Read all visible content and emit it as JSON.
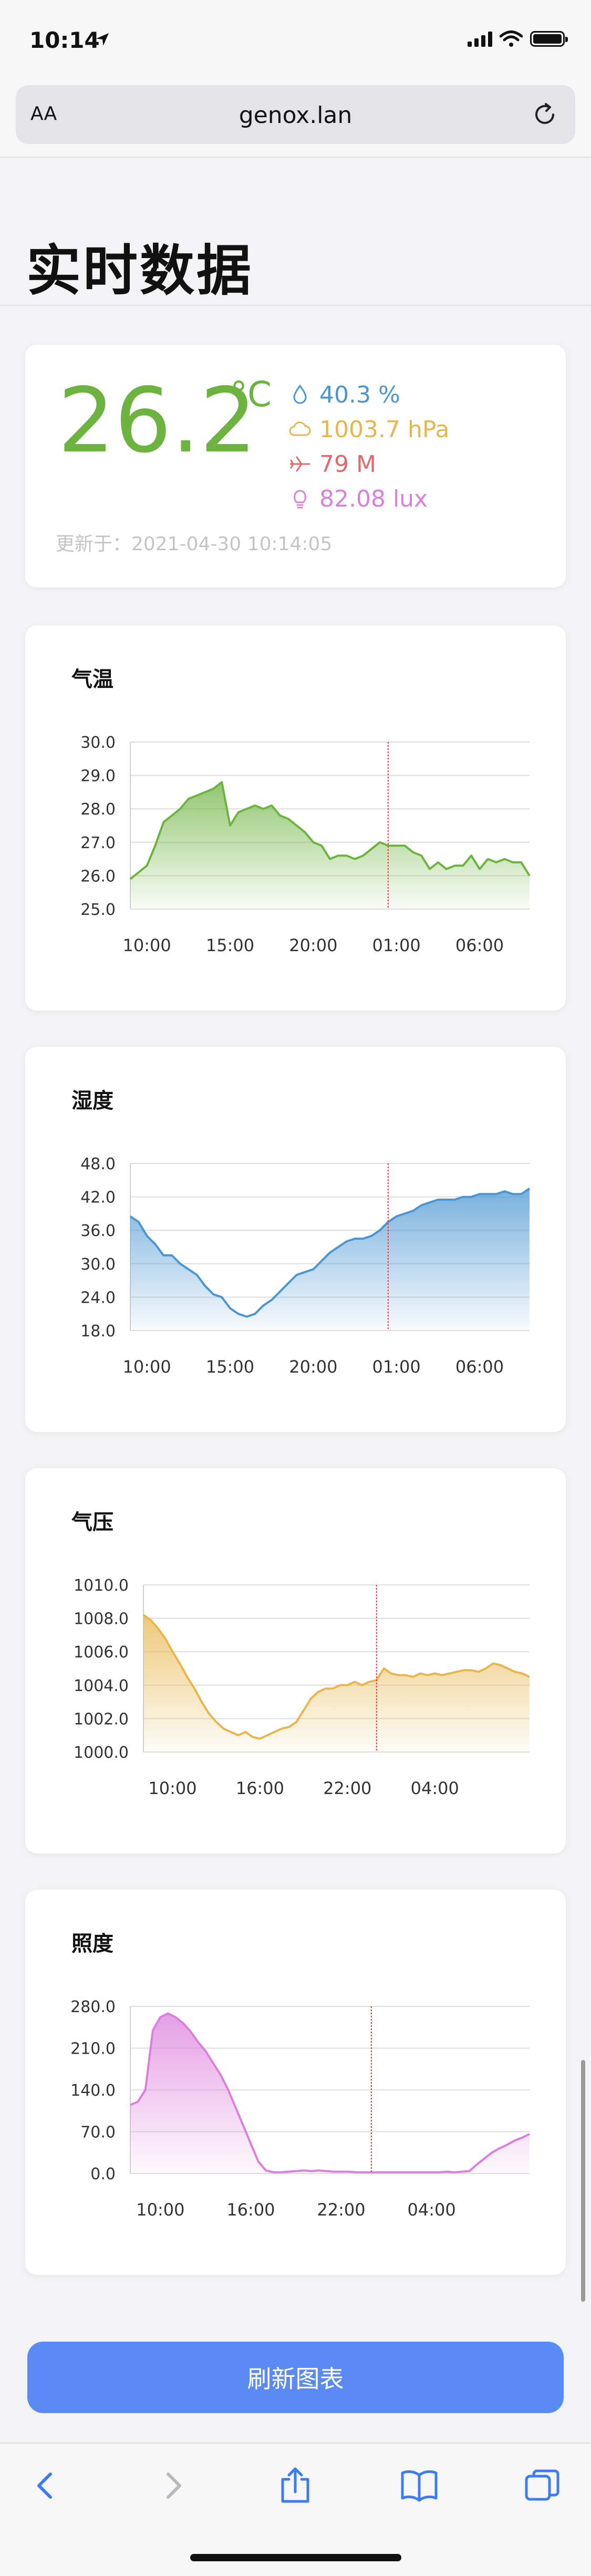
{
  "status_bar": {
    "time": "10:14"
  },
  "browser": {
    "text_size_label": "AA",
    "url": "genox.lan"
  },
  "page": {
    "title": "实时数据"
  },
  "current": {
    "temperature": "26.2",
    "temperature_unit": "°C",
    "humidity": "40.3 %",
    "pressure": "1003.7 hPa",
    "altitude": "79 M",
    "illuminance": "82.08 lux",
    "updated": "更新于：2021-04-30 10:14:05",
    "colors": {
      "temperature": "#6db33f",
      "humidity": "#4a96d2",
      "pressure": "#e8b64c",
      "altitude": "#e06a6a",
      "illuminance": "#dc7fdc"
    }
  },
  "refresh_button": {
    "label": "刷新图表"
  },
  "chart_data": [
    {
      "type": "area",
      "title": "气温",
      "color": "#6db33f",
      "yticks": [
        "30.0",
        "29.0",
        "28.0",
        "27.0",
        "26.0",
        "25.0"
      ],
      "ylim": [
        25,
        30
      ],
      "xticks": [
        "10:00",
        "15:00",
        "20:00",
        "01:00",
        "06:00"
      ],
      "x": [
        "09:00",
        "09:30",
        "10:00",
        "10:30",
        "11:00",
        "11:30",
        "12:00",
        "12:30",
        "13:00",
        "13:30",
        "14:00",
        "14:30",
        "15:00",
        "15:30",
        "16:00",
        "16:30",
        "17:00",
        "17:30",
        "18:00",
        "18:30",
        "19:00",
        "19:30",
        "20:00",
        "20:30",
        "21:00",
        "21:30",
        "22:00",
        "22:30",
        "23:00",
        "23:30",
        "00:00",
        "00:30",
        "01:00",
        "01:30",
        "02:00",
        "02:30",
        "03:00",
        "03:30",
        "04:00",
        "04:30",
        "05:00",
        "05:30",
        "06:00",
        "06:30",
        "07:00",
        "07:30",
        "08:00",
        "08:30",
        "09:00"
      ],
      "values": [
        25.9,
        26.1,
        26.3,
        26.9,
        27.6,
        27.8,
        28.0,
        28.3,
        28.4,
        28.5,
        28.6,
        28.8,
        27.5,
        27.9,
        28.0,
        28.1,
        28.0,
        28.1,
        27.8,
        27.7,
        27.5,
        27.3,
        27.0,
        26.9,
        26.5,
        26.6,
        26.6,
        26.5,
        26.6,
        26.8,
        27.0,
        26.9,
        26.9,
        26.9,
        26.7,
        26.6,
        26.2,
        26.4,
        26.2,
        26.3,
        26.3,
        26.6,
        26.2,
        26.5,
        26.4,
        26.5,
        26.4,
        26.4,
        26.0
      ],
      "marker_at": "00:30"
    },
    {
      "type": "area",
      "title": "湿度",
      "color": "#4a96d2",
      "yticks": [
        "48.0",
        "42.0",
        "36.0",
        "30.0",
        "24.0",
        "18.0"
      ],
      "ylim": [
        18,
        48
      ],
      "xticks": [
        "10:00",
        "15:00",
        "20:00",
        "01:00",
        "06:00"
      ],
      "x": [
        "09:00",
        "09:30",
        "10:00",
        "10:30",
        "11:00",
        "11:30",
        "12:00",
        "12:30",
        "13:00",
        "13:30",
        "14:00",
        "14:30",
        "15:00",
        "15:30",
        "16:00",
        "16:30",
        "17:00",
        "17:30",
        "18:00",
        "18:30",
        "19:00",
        "19:30",
        "20:00",
        "20:30",
        "21:00",
        "21:30",
        "22:00",
        "22:30",
        "23:00",
        "23:30",
        "00:00",
        "00:30",
        "01:00",
        "01:30",
        "02:00",
        "02:30",
        "03:00",
        "03:30",
        "04:00",
        "04:30",
        "05:00",
        "05:30",
        "06:00",
        "06:30",
        "07:00",
        "07:30",
        "08:00",
        "08:30",
        "09:00"
      ],
      "values": [
        38.5,
        37.5,
        35.0,
        33.5,
        31.5,
        31.5,
        30.0,
        29.0,
        28.0,
        26.0,
        24.5,
        24.0,
        22.0,
        21.0,
        20.5,
        21.0,
        22.5,
        23.5,
        25.0,
        26.5,
        28.0,
        28.5,
        29.0,
        30.5,
        32.0,
        33.0,
        34.0,
        34.5,
        34.5,
        35.0,
        36.0,
        37.5,
        38.5,
        39.0,
        39.5,
        40.5,
        41.0,
        41.5,
        41.5,
        41.5,
        42.0,
        42.0,
        42.5,
        42.5,
        42.5,
        43.0,
        42.5,
        42.5,
        43.5
      ],
      "marker_at": "00:30"
    },
    {
      "type": "area",
      "title": "气压",
      "color": "#e8b64c",
      "yticks": [
        "1010.0",
        "1008.0",
        "1006.0",
        "1004.0",
        "1002.0",
        "1000.0"
      ],
      "ylim": [
        1000,
        1010
      ],
      "xticks": [
        "10:00",
        "16:00",
        "22:00",
        "04:00"
      ],
      "x": [
        "08:00",
        "08:30",
        "09:00",
        "09:30",
        "10:00",
        "10:30",
        "11:00",
        "11:30",
        "12:00",
        "12:30",
        "13:00",
        "13:30",
        "14:00",
        "14:30",
        "15:00",
        "15:30",
        "16:00",
        "16:30",
        "17:00",
        "17:30",
        "18:00",
        "18:30",
        "19:00",
        "19:30",
        "20:00",
        "20:30",
        "21:00",
        "21:30",
        "22:00",
        "22:30",
        "23:00",
        "23:30",
        "00:00",
        "00:30",
        "01:00",
        "01:30",
        "02:00",
        "02:30",
        "03:00",
        "03:30",
        "04:00",
        "04:30",
        "05:00",
        "05:30",
        "06:00",
        "06:30",
        "07:00",
        "07:30",
        "08:00",
        "08:30",
        "09:00",
        "09:30",
        "10:00",
        "10:30"
      ],
      "values": [
        1008.2,
        1007.9,
        1007.4,
        1006.8,
        1006.0,
        1005.3,
        1004.5,
        1003.8,
        1003.0,
        1002.3,
        1001.8,
        1001.4,
        1001.2,
        1001.0,
        1001.2,
        1000.9,
        1000.8,
        1001.0,
        1001.2,
        1001.4,
        1001.5,
        1001.8,
        1002.5,
        1003.2,
        1003.6,
        1003.8,
        1003.8,
        1004.0,
        1004.0,
        1004.2,
        1004.0,
        1004.2,
        1004.3,
        1005.0,
        1004.7,
        1004.6,
        1004.6,
        1004.5,
        1004.7,
        1004.6,
        1004.7,
        1004.6,
        1004.7,
        1004.8,
        1004.9,
        1004.9,
        1004.8,
        1005.0,
        1005.3,
        1005.2,
        1005.0,
        1004.8,
        1004.7,
        1004.5
      ],
      "marker_at": "00:00"
    },
    {
      "type": "area",
      "title": "照度",
      "color": "#dc7fdc",
      "yticks": [
        "280.0",
        "210.0",
        "140.0",
        "70.0",
        "0.0"
      ],
      "ylim": [
        0,
        280
      ],
      "xticks": [
        "10:00",
        "16:00",
        "22:00",
        "04:00"
      ],
      "x": [
        "08:00",
        "08:30",
        "09:00",
        "09:30",
        "10:00",
        "10:30",
        "11:00",
        "11:30",
        "12:00",
        "12:30",
        "13:00",
        "13:30",
        "14:00",
        "14:30",
        "15:00",
        "15:30",
        "16:00",
        "16:30",
        "17:00",
        "17:30",
        "18:00",
        "18:30",
        "19:00",
        "19:30",
        "20:00",
        "20:30",
        "21:00",
        "21:30",
        "22:00",
        "22:30",
        "23:00",
        "23:30",
        "00:00",
        "00:30",
        "01:00",
        "01:30",
        "02:00",
        "02:30",
        "03:00",
        "03:30",
        "04:00",
        "04:30",
        "05:00",
        "05:30",
        "06:00",
        "06:30",
        "07:00",
        "07:30",
        "08:00",
        "08:30",
        "09:00",
        "09:30",
        "10:00",
        "10:30"
      ],
      "values": [
        115,
        120,
        140,
        240,
        262,
        268,
        262,
        252,
        238,
        220,
        205,
        185,
        165,
        140,
        110,
        80,
        50,
        20,
        5,
        2,
        2,
        3,
        4,
        5,
        4,
        5,
        4,
        3,
        3,
        3,
        2,
        2,
        2,
        2,
        2,
        2,
        2,
        2,
        2,
        2,
        2,
        2,
        3,
        2,
        3,
        4,
        15,
        25,
        35,
        42,
        48,
        55,
        60,
        66
      ],
      "marker_at": "00:00"
    }
  ]
}
